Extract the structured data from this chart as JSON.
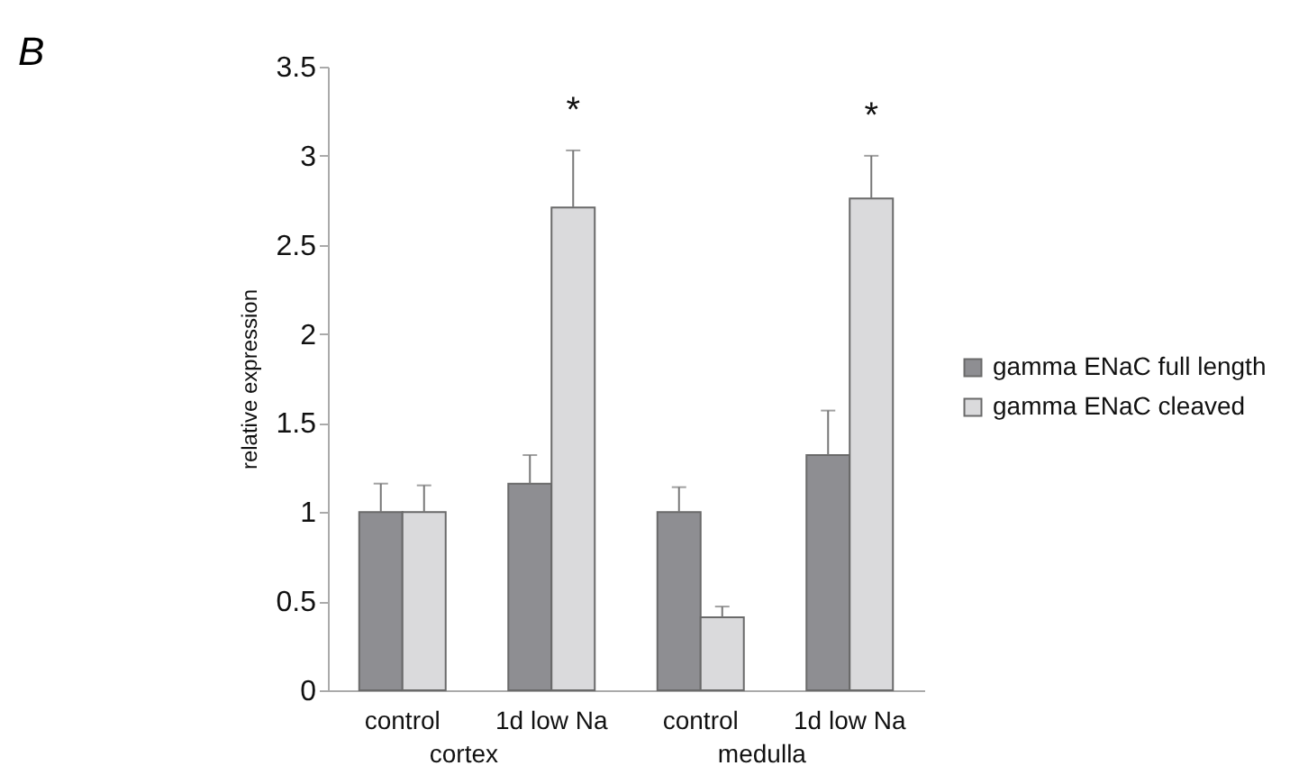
{
  "chart_data": {
    "type": "bar",
    "ylabel": "relative expression",
    "categories": [
      "control",
      "1d low Na",
      "control",
      "1d low Na"
    ],
    "series": [
      {
        "name": "gamma ENaC full length",
        "color": "#8e8e92",
        "values": [
          1.0,
          1.16,
          1.0,
          1.32
        ],
        "errors": [
          [
            1.0,
            1.16
          ],
          [
            1.16,
            1.32
          ],
          [
            1.0,
            1.14
          ],
          [
            1.32,
            1.57
          ]
        ]
      },
      {
        "name": "gamma ENaC cleaved",
        "color": "#dadadc",
        "values": [
          1.0,
          2.71,
          0.41,
          2.76
        ],
        "errors": [
          [
            1.0,
            1.15
          ],
          [
            2.71,
            3.03
          ],
          [
            0.41,
            0.47
          ],
          [
            2.76,
            3.0
          ]
        ]
      }
    ],
    "ylim": [
      0,
      3.5
    ],
    "yticks": [
      0,
      0.5,
      1,
      1.5,
      2,
      2.5,
      3,
      3.5
    ],
    "grid": false,
    "legend": "right",
    "annotations": [
      "B",
      "*",
      "*",
      "cortex",
      "medulla"
    ]
  }
}
